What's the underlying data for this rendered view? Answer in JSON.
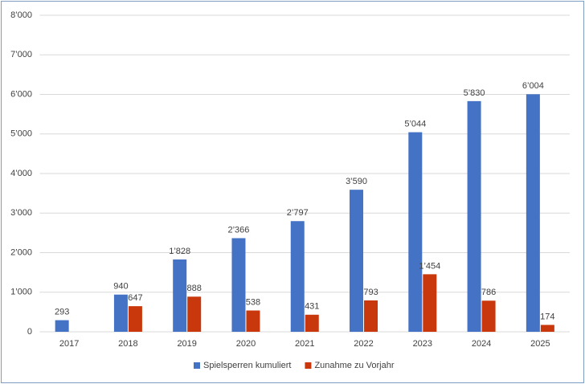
{
  "chart_data": {
    "type": "bar",
    "categories": [
      "2017",
      "2018",
      "2019",
      "2020",
      "2021",
      "2022",
      "2023",
      "2024",
      "2025"
    ],
    "series": [
      {
        "name": "Spielsperren kumuliert",
        "color": "#4472c4",
        "values": [
          293,
          940,
          1828,
          2366,
          2797,
          3590,
          5044,
          5830,
          6004
        ],
        "value_labels": [
          "293",
          "940",
          "1’828",
          "2’366",
          "2’797",
          "3’590",
          "5’044",
          "5’830",
          "6’004"
        ]
      },
      {
        "name": "Zunahme zu Vorjahr",
        "color": "#c9380c",
        "values": [
          null,
          647,
          888,
          538,
          431,
          793,
          1454,
          786,
          174
        ],
        "value_labels": [
          null,
          "647",
          "888",
          "538",
          "431",
          "793",
          "1’454",
          "786",
          "174"
        ]
      }
    ],
    "ylim": [
      0,
      8000
    ],
    "yticks": [
      0,
      {
        "value": 1000,
        "label": "1’000"
      },
      {
        "value": 2000,
        "label": "2’000"
      },
      {
        "value": 3000,
        "label": "3’000"
      },
      {
        "value": 4000,
        "label": "4’000"
      },
      {
        "value": 5000,
        "label": "5’000"
      },
      {
        "value": 6000,
        "label": "6’000"
      },
      {
        "value": 7000,
        "label": "7’000"
      },
      {
        "value": 8000,
        "label": "8’000"
      }
    ],
    "grid": true,
    "legend": "bottom"
  }
}
